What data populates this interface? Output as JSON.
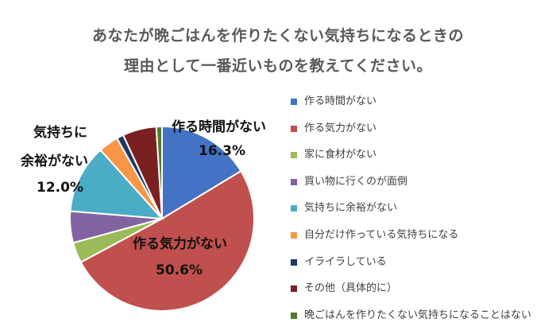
{
  "chart_data": {
    "type": "pie",
    "title_lines": [
      "あなたが晩ごはんを作りたくない気持ちになるときの",
      "理由として一番近いものを教えてください。"
    ],
    "categories": [
      "作る時間がない",
      "作る気力がない",
      "家に食材がない",
      "買い物に行くのが面倒",
      "気持ちに余裕がない",
      "自分だけ作っている気持ちになる",
      "イライラしている",
      "その他（具体的に）",
      "晩ごはんを作りたくない気持ちになることはない"
    ],
    "values": [
      16.3,
      50.6,
      3.6,
      5.5,
      12.0,
      3.5,
      1.2,
      5.9,
      1.0
    ],
    "colors": [
      "#4472C4",
      "#C0504D",
      "#9BBB59",
      "#8064A2",
      "#4BACC6",
      "#F79646",
      "#1F3864",
      "#7B2020",
      "#4F7A28"
    ],
    "data_labels": [
      {
        "name_lines": [
          "作る時間がない"
        ],
        "value": "16.3%"
      },
      {
        "name_lines": [
          "作る気力がない"
        ],
        "value": "50.6%"
      },
      {
        "name_lines": [
          "気持ちに",
          "余裕がない"
        ],
        "value": "12.0%"
      }
    ],
    "legend_position": "right"
  }
}
